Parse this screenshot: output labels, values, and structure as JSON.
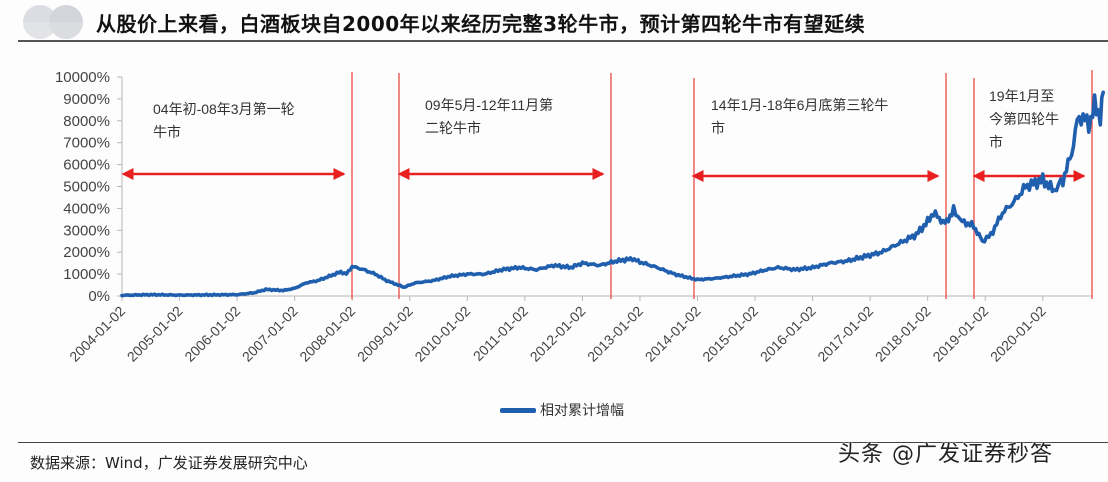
{
  "header": {
    "title": "从股价上来看，白酒板块自2000年以来经历完整3轮牛市，预计第四轮牛市有望延续"
  },
  "chart_data": {
    "type": "line",
    "title": "从股价上来看，白酒板块自2000年以来经历完整3轮牛市，预计第四轮牛市有望延续",
    "xlabel": "",
    "ylabel": "",
    "ylim": [
      0,
      10000
    ],
    "y_unit": "%",
    "y_ticks": [
      "0%",
      "1000%",
      "2000%",
      "3000%",
      "4000%",
      "5000%",
      "6000%",
      "7000%",
      "8000%",
      "9000%",
      "10000%"
    ],
    "x_ticks": [
      "2004-01-02",
      "2005-01-02",
      "2006-01-02",
      "2007-01-02",
      "2008-01-02",
      "2009-01-02",
      "2010-01-02",
      "2011-01-02",
      "2012-01-02",
      "2013-01-02",
      "2014-01-02",
      "2015-01-02",
      "2016-01-02",
      "2017-01-02",
      "2018-01-02",
      "2019-01-02",
      "2020-01-02"
    ],
    "grid": false,
    "legend_position": "bottom",
    "series": [
      {
        "name": "相对累计增幅",
        "color": "#1f5fae",
        "x": [
          2004.0,
          2004.5,
          2005.0,
          2005.5,
          2006.0,
          2006.3,
          2006.5,
          2006.8,
          2007.0,
          2007.2,
          2007.4,
          2007.6,
          2007.8,
          2007.9,
          2008.0,
          2008.2,
          2008.4,
          2008.6,
          2008.8,
          2008.9,
          2009.1,
          2009.4,
          2009.7,
          2010.0,
          2010.3,
          2010.6,
          2010.9,
          2011.2,
          2011.5,
          2011.8,
          2012.0,
          2012.3,
          2012.6,
          2012.87,
          2013.0,
          2013.3,
          2013.6,
          2013.9,
          2014.0,
          2014.3,
          2014.6,
          2014.9,
          2015.2,
          2015.4,
          2015.7,
          2016.0,
          2016.3,
          2016.6,
          2016.9,
          2017.2,
          2017.5,
          2017.8,
          2018.0,
          2018.1,
          2018.3,
          2018.45,
          2018.6,
          2018.8,
          2018.95,
          2019.1,
          2019.3,
          2019.5,
          2019.7,
          2019.9,
          2020.0,
          2020.2,
          2020.35,
          2020.5,
          2020.6,
          2020.7,
          2020.8,
          2020.9,
          2021.0,
          2021.05
        ],
        "values": [
          30,
          60,
          40,
          50,
          60,
          150,
          300,
          250,
          350,
          600,
          700,
          900,
          1100,
          1000,
          1350,
          1200,
          1000,
          700,
          500,
          400,
          600,
          700,
          900,
          1000,
          1000,
          1200,
          1300,
          1200,
          1400,
          1300,
          1500,
          1400,
          1600,
          1700,
          1550,
          1300,
          1000,
          800,
          750,
          800,
          900,
          1000,
          1200,
          1300,
          1200,
          1300,
          1500,
          1600,
          1800,
          2000,
          2400,
          2800,
          3400,
          3800,
          3300,
          3900,
          3400,
          3200,
          2500,
          2800,
          3800,
          4300,
          5000,
          5200,
          5300,
          4800,
          5300,
          6500,
          8000,
          8200,
          7800,
          8700,
          8200,
          9300
        ]
      }
    ],
    "annotations": [
      {
        "text_line1": "04年初-08年3月第一轮",
        "text_line2": "牛市",
        "text_line3": "",
        "start": "2004-01",
        "end": "2008-03"
      },
      {
        "text_line1": "09年5月-12年11月第",
        "text_line2": "二轮牛市",
        "text_line3": "",
        "start": "2009-05",
        "end": "2012-11"
      },
      {
        "text_line1": "14年1月-18年6月底第三轮牛",
        "text_line2": "市",
        "text_line3": "",
        "start": "2014-01",
        "end": "2018-06"
      },
      {
        "text_line1": "19年1月至",
        "text_line2": "今第四轮牛",
        "text_line3": "市",
        "start": "2019-01",
        "end": "now"
      }
    ]
  },
  "legend": {
    "label": "相对累计增幅"
  },
  "footer": {
    "source": "数据来源：Wind，广发证券发展研究中心",
    "watermark": "头条 @广发证券秒答"
  },
  "colors": {
    "line": "#1f5fae",
    "marker": "#e82020",
    "axis": "#b8b8b8"
  }
}
